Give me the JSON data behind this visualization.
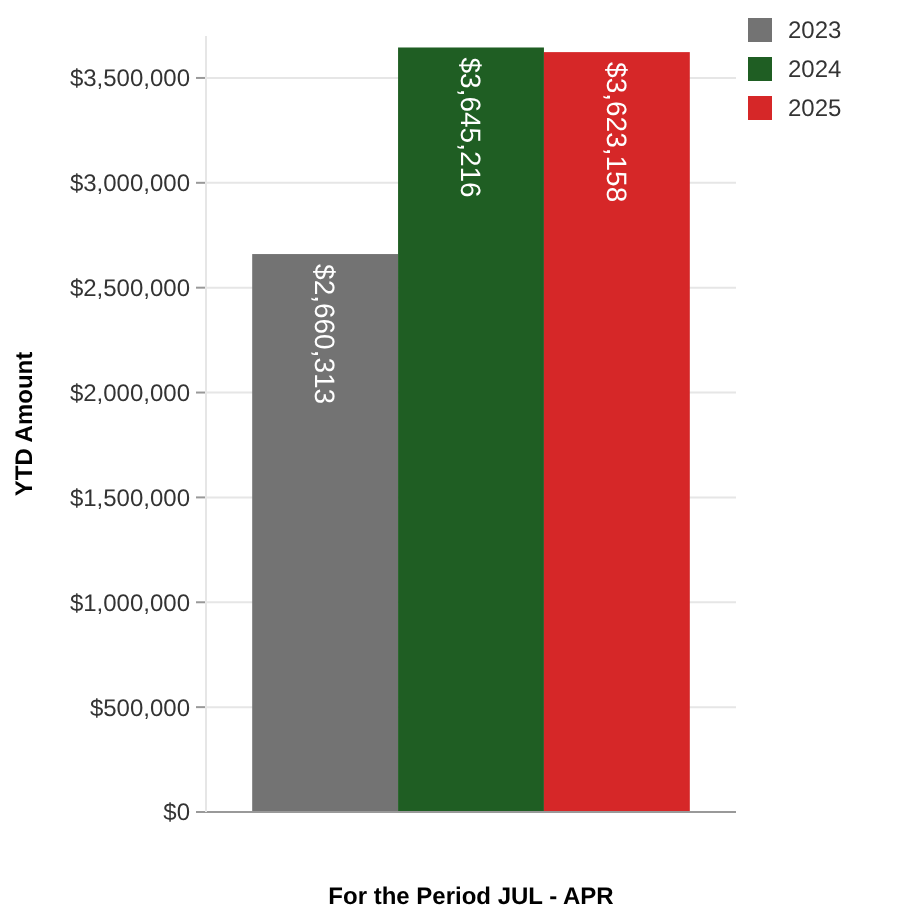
{
  "chart_data": {
    "type": "bar",
    "xlabel": "For the Period JUL - APR",
    "ylabel": "YTD Amount",
    "categories": [
      null
    ],
    "series": [
      {
        "name": "2023",
        "color": "#737373",
        "values": [
          2660313
        ],
        "value_labels": [
          "$2,660,313"
        ]
      },
      {
        "name": "2024",
        "color": "#1f5e23",
        "values": [
          3645216
        ],
        "value_labels": [
          "$3,645,216"
        ]
      },
      {
        "name": "2025",
        "color": "#d62728",
        "values": [
          3623158
        ],
        "value_labels": [
          "$3,623,158"
        ]
      }
    ],
    "ylim": [
      0,
      3700000
    ],
    "yticks": [
      {
        "value": 0,
        "label": "$0"
      },
      {
        "value": 500000,
        "label": "$500,000"
      },
      {
        "value": 1000000,
        "label": "$1,000,000"
      },
      {
        "value": 1500000,
        "label": "$1,500,000"
      },
      {
        "value": 2000000,
        "label": "$2,000,000"
      },
      {
        "value": 2500000,
        "label": "$2,500,000"
      },
      {
        "value": 3000000,
        "label": "$3,000,000"
      },
      {
        "value": 3500000,
        "label": "$3,500,000"
      }
    ],
    "grid": "y",
    "legend": "top right"
  }
}
